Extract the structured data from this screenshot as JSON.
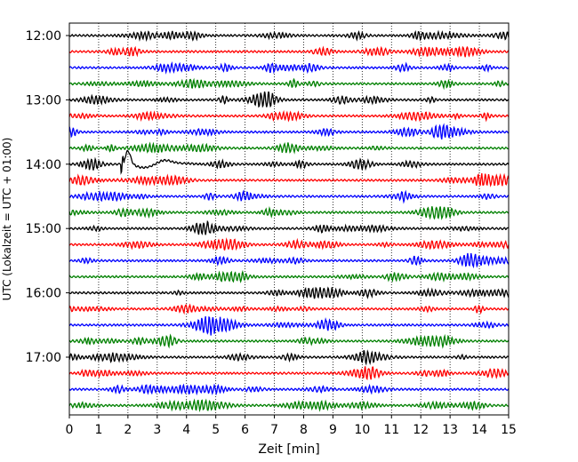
{
  "chart_data": {
    "type": "line",
    "title": "",
    "xlabel": "Zeit  [min]",
    "ylabel": "UTC (Lokalzeit = UTC + 01:00)",
    "xlim": [
      0,
      15
    ],
    "x_ticks": [
      "0",
      "1",
      "2",
      "3",
      "4",
      "5",
      "6",
      "7",
      "8",
      "9",
      "10",
      "11",
      "12",
      "13",
      "14",
      "15"
    ],
    "y_ticks": [
      "12:00",
      "13:00",
      "14:00",
      "15:00",
      "16:00",
      "17:00"
    ],
    "trace_start": "12:00",
    "trace_interval_min": 15,
    "trace_count": 24,
    "trace_colors": [
      "#000000",
      "#ff0000",
      "#0000ff",
      "#008000"
    ],
    "grid_x": "dotted",
    "event": {
      "trace_start": "14:00",
      "onset_min": 1.75,
      "peak_min": 2.0,
      "surface_wave_min": 3.2
    }
  }
}
